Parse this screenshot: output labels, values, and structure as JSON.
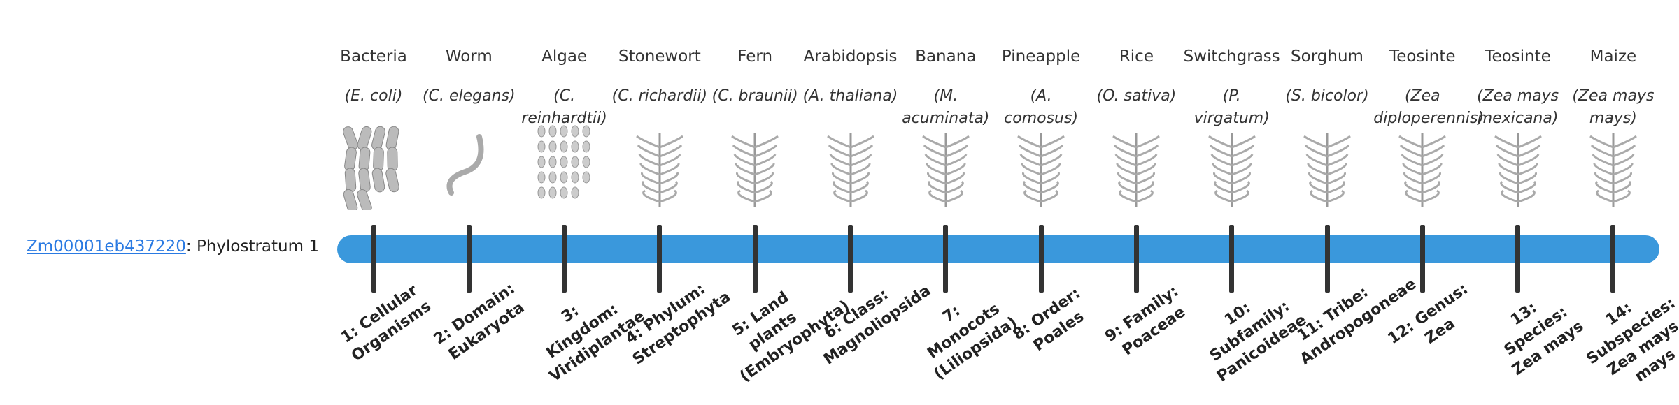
{
  "gene": {
    "id": "Zm00001eb437220",
    "suffix": ": Phylostratum 1"
  },
  "columns": [
    {
      "name": "Bacteria",
      "scientific": "(E. coli)",
      "stratum": "1: Cellular Organisms"
    },
    {
      "name": "Worm",
      "scientific": "(C. elegans)",
      "stratum": "2: Domain: Eukaryota"
    },
    {
      "name": "Algae",
      "scientific": "(C. reinhardtii)",
      "stratum": "3: Kingdom: Viridiplantae"
    },
    {
      "name": "Stonewort",
      "scientific": "(C. richardii)",
      "stratum": "4: Phylum: Streptophyta"
    },
    {
      "name": "Fern",
      "scientific": "(C. braunii)",
      "stratum": "5: Land plants (Embryophyta)"
    },
    {
      "name": "Arabidopsis",
      "scientific": "(A. thaliana)",
      "stratum": "6: Class: Magnoliopsida"
    },
    {
      "name": "Banana",
      "scientific": "(M. acuminata)",
      "stratum": "7: Monocots (Liliopsida)"
    },
    {
      "name": "Pineapple",
      "scientific": "(A. comosus)",
      "stratum": "8: Order: Poales"
    },
    {
      "name": "Rice",
      "scientific": "(O. sativa)",
      "stratum": "9: Family: Poaceae"
    },
    {
      "name": "Switchgrass",
      "scientific": "(P. virgatum)",
      "stratum": "10: Subfamily: Panicoideae"
    },
    {
      "name": "Sorghum",
      "scientific": "(S. bicolor)",
      "stratum": "11: Tribe: Andropogoneae"
    },
    {
      "name": "Teosinte",
      "scientific": "(Zea diploperennis)",
      "stratum": "12: Genus: Zea"
    },
    {
      "name": "Teosinte",
      "scientific": "(Zea mays mexicana)",
      "stratum": "13: Species: Zea mays"
    },
    {
      "name": "Maize",
      "scientific": "(Zea mays mays)",
      "stratum": "14: Subspecies: Zea mays mays"
    }
  ]
}
